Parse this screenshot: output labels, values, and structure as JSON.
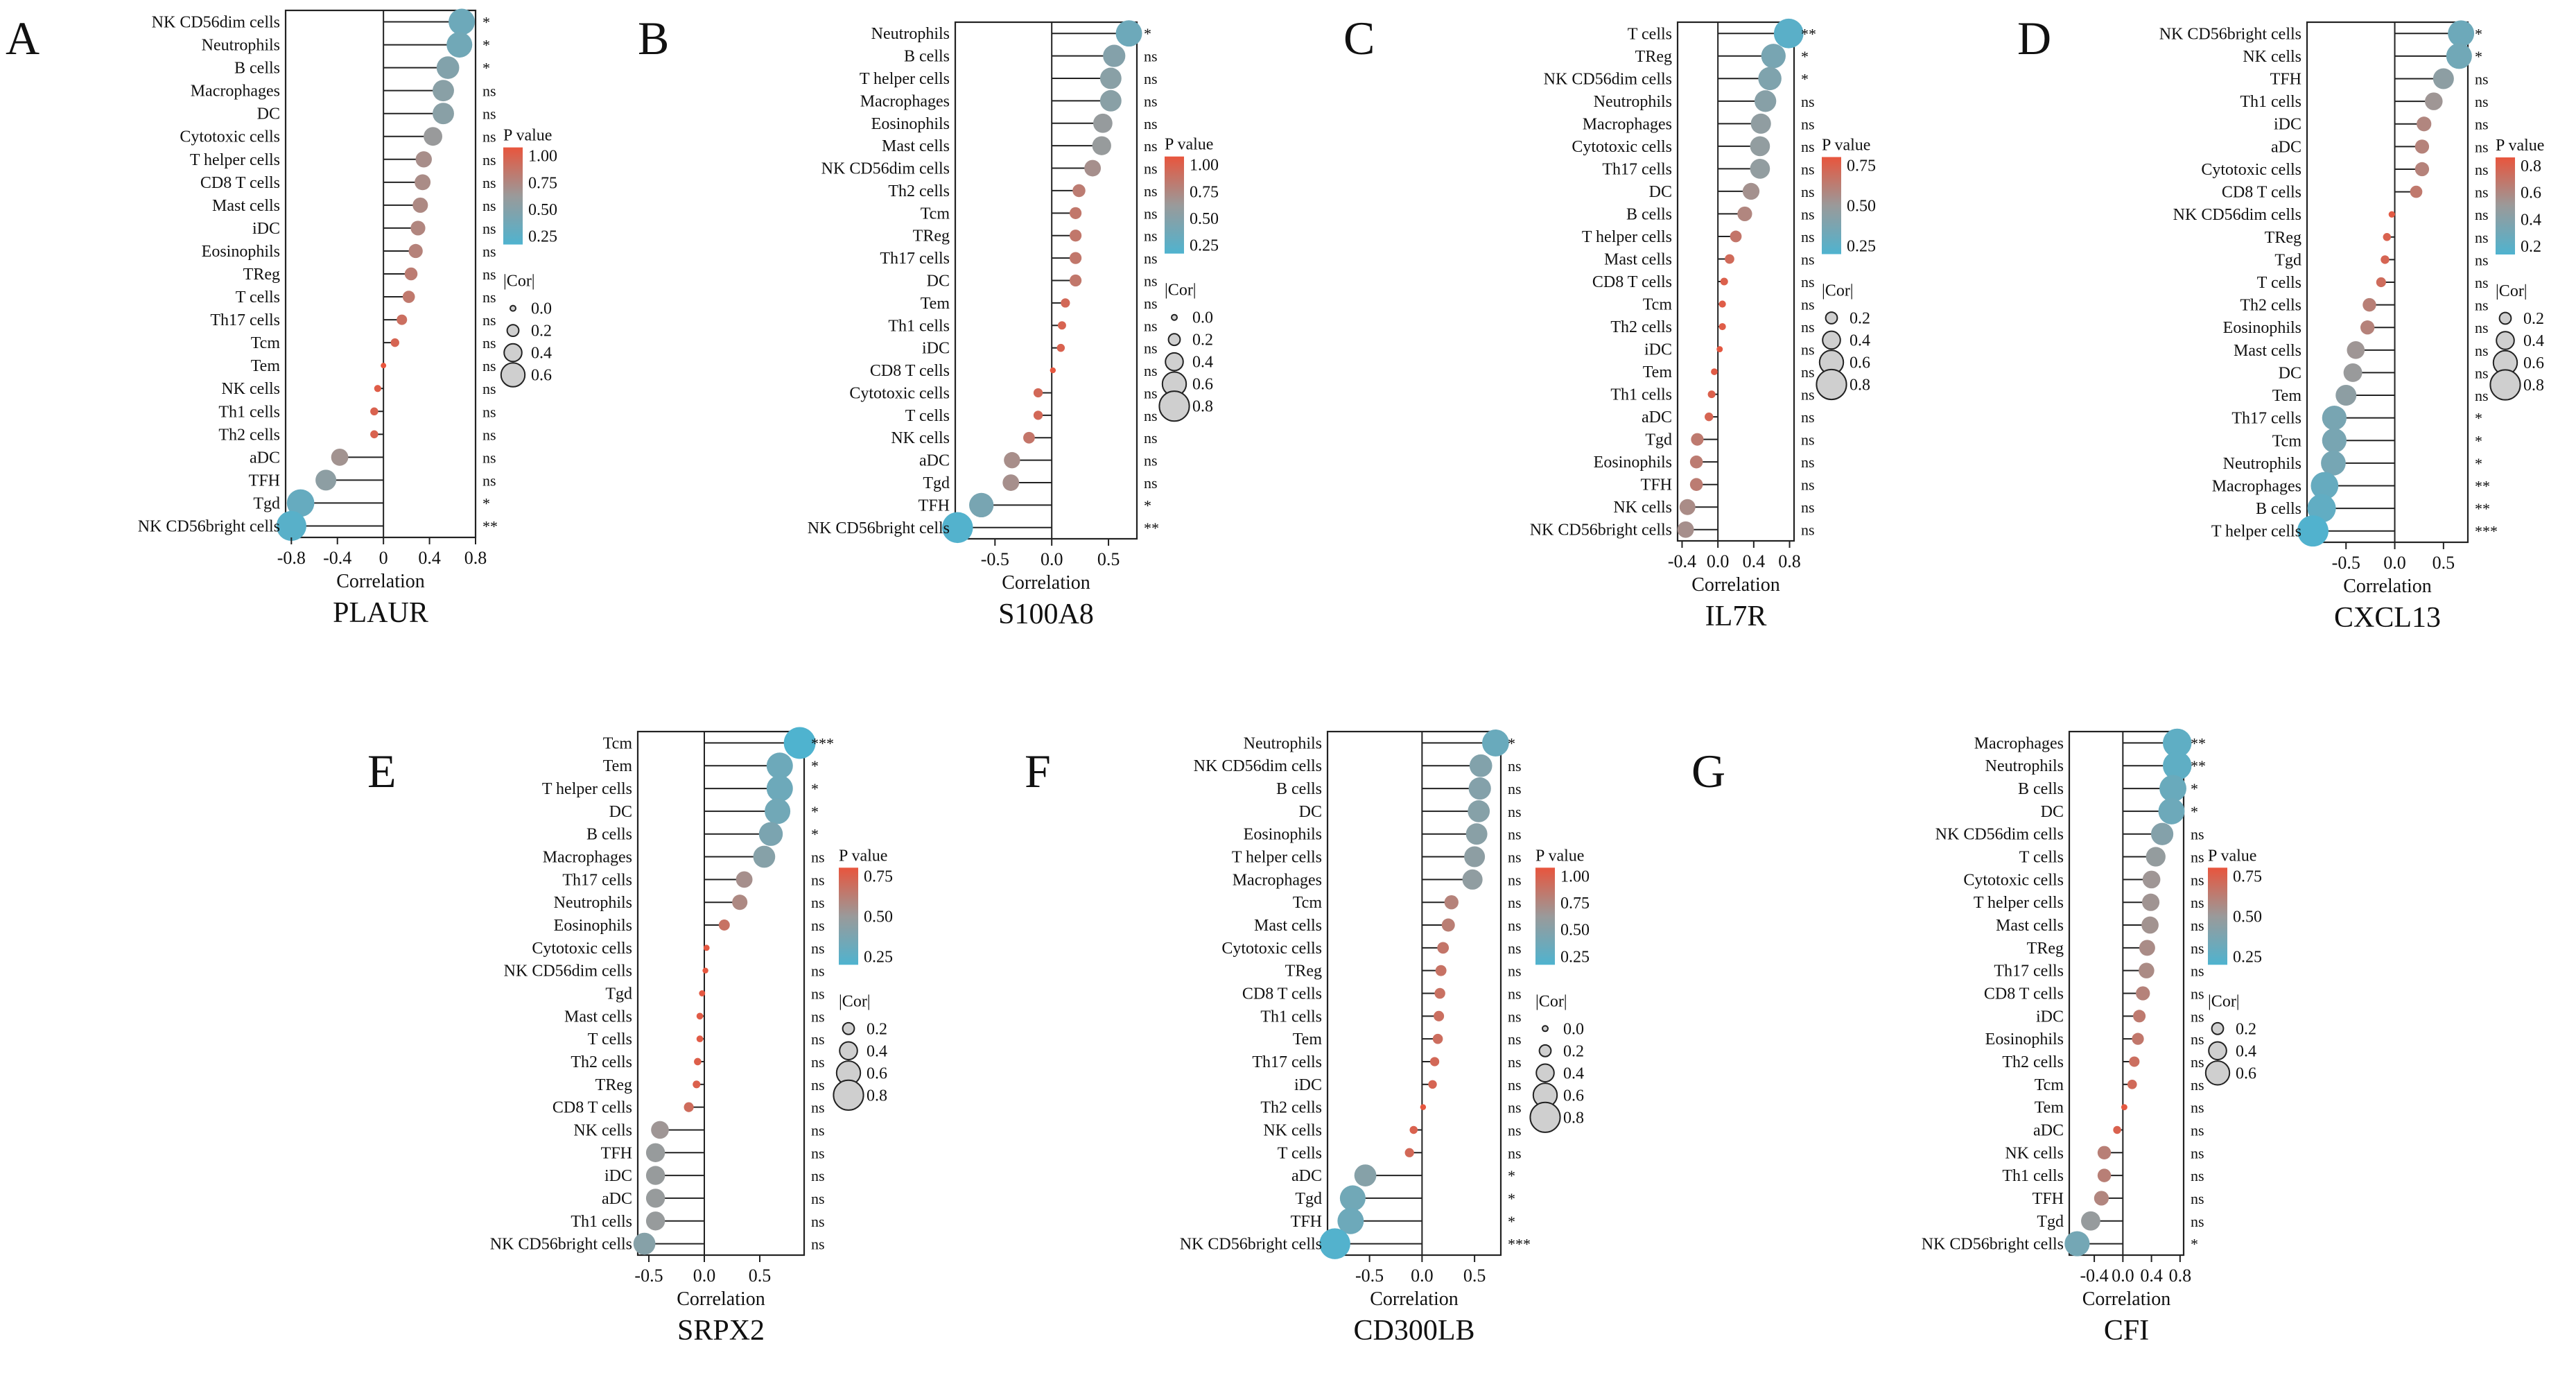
{
  "figure": {
    "pvalue_colors": {
      "low": "#4fb3cf",
      "mid": "#9a9a9a",
      "high": "#e8553d"
    },
    "common_labels": {
      "x_axis": "Correlation",
      "pvalue_legend": "P value",
      "cor_legend": "|Cor|"
    }
  },
  "chart_data": [
    {
      "panel": "A",
      "gene": "PLAUR",
      "type": "lollipop",
      "xlabel": "Correlation",
      "xlim": [
        -0.85,
        0.8
      ],
      "xticks": [
        -0.8,
        -0.4,
        0.0,
        0.4,
        0.8
      ],
      "xtick_labels": [
        "-0.8",
        "-0.4",
        "0",
        "0.4",
        "0.8"
      ],
      "categories": [
        "NK CD56dim cells",
        "Neutrophils",
        "B cells",
        "Macrophages",
        "DC",
        "Cytotoxic cells",
        "T helper cells",
        "CD8 T cells",
        "Mast cells",
        "iDC",
        "Eosinophils",
        "TReg",
        "T cells",
        "Th17 cells",
        "Tcm",
        "Tem",
        "NK cells",
        "Th1 cells",
        "Th2 cells",
        "aDC",
        "TFH",
        "Tgd",
        "NK CD56bright cells"
      ],
      "values": [
        0.68,
        0.66,
        0.56,
        0.52,
        0.52,
        0.43,
        0.35,
        0.34,
        0.32,
        0.3,
        0.28,
        0.24,
        0.22,
        0.16,
        0.1,
        0.0,
        -0.05,
        -0.08,
        -0.08,
        -0.38,
        -0.5,
        -0.72,
        -0.8
      ],
      "significance": [
        "*",
        "*",
        "*",
        "ns",
        "ns",
        "ns",
        "ns",
        "ns",
        "ns",
        "ns",
        "ns",
        "ns",
        "ns",
        "ns",
        "ns",
        "ns",
        "ns",
        "ns",
        "ns",
        "ns",
        "ns",
        "*",
        "**"
      ],
      "pvalue_legend": {
        "title": "P value",
        "ticks": [
          "1.00",
          "0.75",
          "0.50",
          "0.25"
        ]
      },
      "cor_legend": {
        "title": "|Cor|",
        "labels": [
          "0.0",
          "0.2",
          "0.4",
          "0.6"
        ]
      }
    },
    {
      "panel": "B",
      "gene": "S100A8",
      "type": "lollipop",
      "xlabel": "Correlation",
      "xlim": [
        -0.85,
        0.75
      ],
      "xticks": [
        -0.5,
        0.0,
        0.5
      ],
      "xtick_labels": [
        "-0.5",
        "0.0",
        "0.5"
      ],
      "categories": [
        "Neutrophils",
        "B cells",
        "T helper cells",
        "Macrophages",
        "Eosinophils",
        "Mast cells",
        "NK CD56dim cells",
        "Th2 cells",
        "Tcm",
        "TReg",
        "Th17 cells",
        "DC",
        "Tem",
        "Th1 cells",
        "iDC",
        "CD8 T cells",
        "Cytotoxic cells",
        "T cells",
        "NK cells",
        "aDC",
        "Tgd",
        "TFH",
        "NK CD56bright cells"
      ],
      "values": [
        0.68,
        0.55,
        0.52,
        0.52,
        0.45,
        0.44,
        0.36,
        0.24,
        0.21,
        0.21,
        0.21,
        0.21,
        0.12,
        0.09,
        0.08,
        0.01,
        -0.12,
        -0.12,
        -0.2,
        -0.35,
        -0.36,
        -0.62,
        -0.83
      ],
      "significance": [
        "*",
        "ns",
        "ns",
        "ns",
        "ns",
        "ns",
        "ns",
        "ns",
        "ns",
        "ns",
        "ns",
        "ns",
        "ns",
        "ns",
        "ns",
        "ns",
        "ns",
        "ns",
        "ns",
        "ns",
        "ns",
        "*",
        "**"
      ],
      "pvalue_legend": {
        "title": "P value",
        "ticks": [
          "1.00",
          "0.75",
          "0.50",
          "0.25"
        ]
      },
      "cor_legend": {
        "title": "|Cor|",
        "labels": [
          "0.0",
          "0.2",
          "0.4",
          "0.6",
          "0.8"
        ]
      }
    },
    {
      "panel": "C",
      "gene": "IL7R",
      "type": "lollipop",
      "xlabel": "Correlation",
      "xlim": [
        -0.45,
        0.85
      ],
      "xticks": [
        -0.4,
        0.0,
        0.4,
        0.8
      ],
      "xtick_labels": [
        "-0.4",
        "0.0",
        "0.4",
        "0.8"
      ],
      "categories": [
        "T cells",
        "TReg",
        "NK CD56dim cells",
        "Neutrophils",
        "Macrophages",
        "Cytotoxic cells",
        "Th17 cells",
        "DC",
        "B cells",
        "T helper cells",
        "Mast cells",
        "CD8 T cells",
        "Tcm",
        "Th2 cells",
        "iDC",
        "Tem",
        "Th1 cells",
        "aDC",
        "Tgd",
        "Eosinophils",
        "TFH",
        "NK cells",
        "NK CD56bright cells"
      ],
      "values": [
        0.79,
        0.62,
        0.58,
        0.53,
        0.48,
        0.47,
        0.47,
        0.37,
        0.3,
        0.2,
        0.13,
        0.07,
        0.05,
        0.05,
        0.02,
        -0.04,
        -0.07,
        -0.1,
        -0.23,
        -0.24,
        -0.24,
        -0.34,
        -0.36
      ],
      "significance": [
        "**",
        "*",
        "*",
        "ns",
        "ns",
        "ns",
        "ns",
        "ns",
        "ns",
        "ns",
        "ns",
        "ns",
        "ns",
        "ns",
        "ns",
        "ns",
        "ns",
        "ns",
        "ns",
        "ns",
        "ns",
        "ns",
        "ns"
      ],
      "pvalue_legend": {
        "title": "P value",
        "ticks": [
          "0.75",
          "0.50",
          "0.25"
        ]
      },
      "cor_legend": {
        "title": "|Cor|",
        "labels": [
          "0.2",
          "0.4",
          "0.6",
          "0.8"
        ]
      }
    },
    {
      "panel": "D",
      "gene": "CXCL13",
      "type": "lollipop",
      "xlabel": "Correlation",
      "xlim": [
        -0.9,
        0.75
      ],
      "xticks": [
        -0.5,
        0.0,
        0.5
      ],
      "xtick_labels": [
        "-0.5",
        "0.0",
        "0.5"
      ],
      "categories": [
        "NK CD56bright cells",
        "NK cells",
        "TFH",
        "Th1 cells",
        "iDC",
        "aDC",
        "Cytotoxic cells",
        "CD8 T cells",
        "NK CD56dim cells",
        "TReg",
        "Tgd",
        "T cells",
        "Th2 cells",
        "Eosinophils",
        "Mast cells",
        "DC",
        "Tem",
        "Th17 cells",
        "Tcm",
        "Neutrophils",
        "Macrophages",
        "B cells",
        "T helper cells"
      ],
      "values": [
        0.68,
        0.66,
        0.5,
        0.4,
        0.3,
        0.28,
        0.28,
        0.22,
        -0.03,
        -0.08,
        -0.1,
        -0.14,
        -0.26,
        -0.28,
        -0.4,
        -0.43,
        -0.5,
        -0.62,
        -0.62,
        -0.63,
        -0.72,
        -0.75,
        -0.84
      ],
      "significance": [
        "*",
        "*",
        "ns",
        "ns",
        "ns",
        "ns",
        "ns",
        "ns",
        "ns",
        "ns",
        "ns",
        "ns",
        "ns",
        "ns",
        "ns",
        "ns",
        "ns",
        "*",
        "*",
        "*",
        "**",
        "**",
        "***"
      ],
      "pvalue_legend": {
        "title": "P value",
        "ticks": [
          "0.8",
          "0.6",
          "0.4",
          "0.2"
        ]
      },
      "cor_legend": {
        "title": "|Cor|",
        "labels": [
          "0.2",
          "0.4",
          "0.6",
          "0.8"
        ]
      }
    },
    {
      "panel": "E",
      "gene": "SRPX2",
      "type": "lollipop",
      "xlabel": "Correlation",
      "xlim": [
        -0.6,
        0.9
      ],
      "xticks": [
        -0.5,
        0.0,
        0.5
      ],
      "xtick_labels": [
        "-0.5",
        "0.0",
        "0.5"
      ],
      "categories": [
        "Tcm",
        "Tem",
        "T helper cells",
        "DC",
        "B cells",
        "Macrophages",
        "Th17 cells",
        "Neutrophils",
        "Eosinophils",
        "Cytotoxic cells",
        "NK CD56dim cells",
        "Tgd",
        "Mast cells",
        "T cells",
        "Th2 cells",
        "TReg",
        "CD8 T cells",
        "NK cells",
        "TFH",
        "iDC",
        "aDC",
        "Th1 cells",
        "NK CD56bright cells"
      ],
      "values": [
        0.86,
        0.68,
        0.68,
        0.66,
        0.6,
        0.54,
        0.36,
        0.32,
        0.18,
        0.02,
        0.01,
        -0.02,
        -0.04,
        -0.04,
        -0.06,
        -0.07,
        -0.14,
        -0.4,
        -0.44,
        -0.44,
        -0.44,
        -0.44,
        -0.54
      ],
      "significance": [
        "***",
        "*",
        "*",
        "*",
        "*",
        "ns",
        "ns",
        "ns",
        "ns",
        "ns",
        "ns",
        "ns",
        "ns",
        "ns",
        "ns",
        "ns",
        "ns",
        "ns",
        "ns",
        "ns",
        "ns",
        "ns",
        "ns"
      ],
      "pvalue_legend": {
        "title": "P value",
        "ticks": [
          "0.75",
          "0.50",
          "0.25"
        ]
      },
      "cor_legend": {
        "title": "|Cor|",
        "labels": [
          "0.2",
          "0.4",
          "0.6",
          "0.8"
        ]
      }
    },
    {
      "panel": "F",
      "gene": "CD300LB",
      "type": "lollipop",
      "xlabel": "Correlation",
      "xlim": [
        -0.9,
        0.75
      ],
      "xticks": [
        -0.5,
        0.0,
        0.5
      ],
      "xtick_labels": [
        "-0.5",
        "0.0",
        "0.5"
      ],
      "categories": [
        "Neutrophils",
        "NK CD56dim cells",
        "B cells",
        "DC",
        "Eosinophils",
        "T helper cells",
        "Macrophages",
        "Tcm",
        "Mast cells",
        "Cytotoxic cells",
        "TReg",
        "CD8 T cells",
        "Th1 cells",
        "Tem",
        "Th17 cells",
        "iDC",
        "Th2 cells",
        "NK cells",
        "T cells",
        "aDC",
        "Tgd",
        "TFH",
        "NK CD56bright cells"
      ],
      "values": [
        0.7,
        0.56,
        0.55,
        0.54,
        0.52,
        0.5,
        0.48,
        0.28,
        0.25,
        0.2,
        0.18,
        0.17,
        0.16,
        0.15,
        0.12,
        0.1,
        0.01,
        -0.08,
        -0.12,
        -0.54,
        -0.66,
        -0.68,
        -0.83
      ],
      "significance": [
        "*",
        "ns",
        "ns",
        "ns",
        "ns",
        "ns",
        "ns",
        "ns",
        "ns",
        "ns",
        "ns",
        "ns",
        "ns",
        "ns",
        "ns",
        "ns",
        "ns",
        "ns",
        "ns",
        "*",
        "*",
        "*",
        "***"
      ],
      "pvalue_legend": {
        "title": "P value",
        "ticks": [
          "1.00",
          "0.75",
          "0.50",
          "0.25"
        ]
      },
      "cor_legend": {
        "title": "|Cor|",
        "labels": [
          "0.0",
          "0.2",
          "0.4",
          "0.6",
          "0.8"
        ]
      }
    },
    {
      "panel": "G",
      "gene": "CFI",
      "type": "lollipop",
      "xlabel": "Correlation",
      "xlim": [
        -0.75,
        0.85
      ],
      "xticks": [
        -0.4,
        0.0,
        0.4,
        0.8
      ],
      "xtick_labels": [
        "-0.4",
        "0.0",
        "0.4",
        "0.8"
      ],
      "categories": [
        "Macrophages",
        "Neutrophils",
        "B cells",
        "DC",
        "NK CD56dim cells",
        "T cells",
        "Cytotoxic cells",
        "T helper cells",
        "Mast cells",
        "TReg",
        "Th17 cells",
        "CD8 T cells",
        "iDC",
        "Eosinophils",
        "Th2 cells",
        "Tcm",
        "Tem",
        "aDC",
        "NK cells",
        "Th1 cells",
        "TFH",
        "Tgd",
        "NK CD56bright cells"
      ],
      "values": [
        0.76,
        0.76,
        0.7,
        0.68,
        0.55,
        0.46,
        0.4,
        0.39,
        0.38,
        0.34,
        0.33,
        0.28,
        0.23,
        0.21,
        0.16,
        0.13,
        0.02,
        -0.08,
        -0.26,
        -0.26,
        -0.3,
        -0.45,
        -0.64
      ],
      "significance": [
        "**",
        "**",
        "*",
        "*",
        "ns",
        "ns",
        "ns",
        "ns",
        "ns",
        "ns",
        "ns",
        "ns",
        "ns",
        "ns",
        "ns",
        "ns",
        "ns",
        "ns",
        "ns",
        "ns",
        "ns",
        "ns",
        "*"
      ],
      "pvalue_legend": {
        "title": "P value",
        "ticks": [
          "0.75",
          "0.50",
          "0.25"
        ]
      },
      "cor_legend": {
        "title": "|Cor|",
        "labels": [
          "0.2",
          "0.4",
          "0.6"
        ]
      }
    }
  ]
}
